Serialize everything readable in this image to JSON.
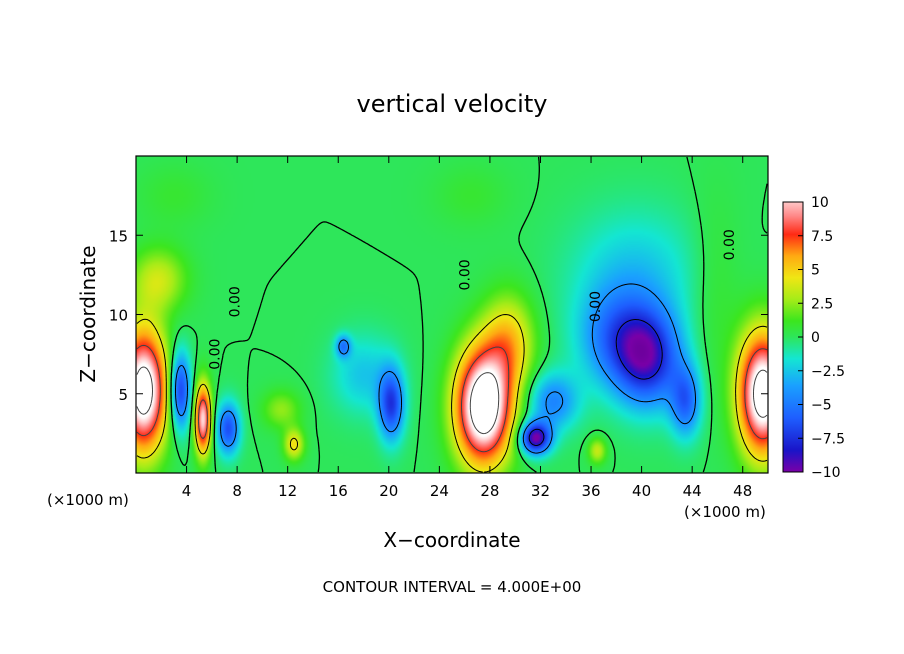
{
  "chart_data": {
    "type": "heatmap",
    "title": "vertical velocity",
    "xlabel": "X−coordinate",
    "ylabel": "Z−coordinate",
    "x_unit_left": "(×1000 m)",
    "x_unit_right": "(×1000 m)",
    "footnote": "CONTOUR INTERVAL = 4.000E+00",
    "xlim": [
      0,
      50
    ],
    "ylim": [
      0,
      20
    ],
    "x_ticks": [
      4,
      8,
      12,
      16,
      20,
      24,
      28,
      32,
      36,
      40,
      44,
      48
    ],
    "y_ticks": [
      5,
      10,
      15
    ],
    "colorbar": {
      "range": [
        -10,
        10
      ],
      "ticks": [
        10,
        7.5,
        5,
        2.5,
        0,
        -2.5,
        -5,
        -7.5,
        -10
      ],
      "tick_labels": [
        "10",
        "7.5",
        "5",
        "2.5",
        "0",
        "−2.5",
        "−5",
        "−7.5",
        "−10"
      ]
    },
    "contour_labels": [
      {
        "text": "0.00",
        "x": 8.2,
        "y": 10.8
      },
      {
        "text": "0.00",
        "x": 6.6,
        "y": 7.5
      },
      {
        "text": "0.00",
        "x": 26.4,
        "y": 12.5
      },
      {
        "text": "0.00",
        "x": 36.7,
        "y": 10.5
      },
      {
        "text": "0.00",
        "x": 47.3,
        "y": 14.4
      }
    ],
    "features": [
      {
        "x": 0.6,
        "y": 5.2,
        "value": 14,
        "sx": 1.8,
        "sy": 3.8
      },
      {
        "x": 49.6,
        "y": 5.0,
        "value": 14,
        "sx": 1.9,
        "sy": 3.8
      },
      {
        "x": 27.5,
        "y": 4.2,
        "value": 15,
        "sx": 2.2,
        "sy": 3.6
      },
      {
        "x": 29.5,
        "y": 8.2,
        "value": 5,
        "sx": 2.0,
        "sy": 3.0
      },
      {
        "x": 5.3,
        "y": 3.4,
        "value": 11,
        "sx": 0.65,
        "sy": 2.2
      },
      {
        "x": 3.5,
        "y": 5.2,
        "value": -7.5,
        "sx": 0.8,
        "sy": 2.4
      },
      {
        "x": 7.3,
        "y": 2.8,
        "value": -6.5,
        "sx": 0.9,
        "sy": 1.6
      },
      {
        "x": 1.8,
        "y": 12.2,
        "value": 3.5,
        "sx": 2.2,
        "sy": 2.0
      },
      {
        "x": 11.5,
        "y": 4.0,
        "value": 2.5,
        "sx": 1.5,
        "sy": 1.2
      },
      {
        "x": 12.5,
        "y": 1.8,
        "value": 4.5,
        "sx": 0.8,
        "sy": 1.0
      },
      {
        "x": 20.2,
        "y": 4.3,
        "value": -7,
        "sx": 1.0,
        "sy": 2.2
      },
      {
        "x": 18.0,
        "y": 6.2,
        "value": -2.5,
        "sx": 2.5,
        "sy": 2.5
      },
      {
        "x": 16.4,
        "y": 8.0,
        "value": -4.5,
        "sx": 0.6,
        "sy": 0.7
      },
      {
        "x": 31.6,
        "y": 2.2,
        "value": -10,
        "sx": 1.2,
        "sy": 1.0
      },
      {
        "x": 33.0,
        "y": 4.5,
        "value": -4.5,
        "sx": 2.0,
        "sy": 1.8
      },
      {
        "x": 36.5,
        "y": 1.4,
        "value": 3.5,
        "sx": 0.7,
        "sy": 0.8
      },
      {
        "x": 40.5,
        "y": 7.2,
        "value": -8,
        "sx": 2.6,
        "sy": 3.0
      },
      {
        "x": 38.0,
        "y": 8.5,
        "value": -4.5,
        "sx": 3.0,
        "sy": 3.0
      },
      {
        "x": 43.5,
        "y": 4.5,
        "value": -5.5,
        "sx": 1.2,
        "sy": 2.2
      },
      {
        "x": 39.5,
        "y": 12.5,
        "value": -2.5,
        "sx": 5.0,
        "sy": 4.0
      },
      {
        "x": 45.8,
        "y": 11.5,
        "value": 1.0,
        "sx": 2.0,
        "sy": 6.0
      },
      {
        "x": 26.5,
        "y": 17.5,
        "value": 0.8,
        "sx": 3.0,
        "sy": 2.0
      },
      {
        "x": 3.0,
        "y": 17.5,
        "value": 0.8,
        "sx": 3.0,
        "sy": 2.0
      }
    ]
  }
}
